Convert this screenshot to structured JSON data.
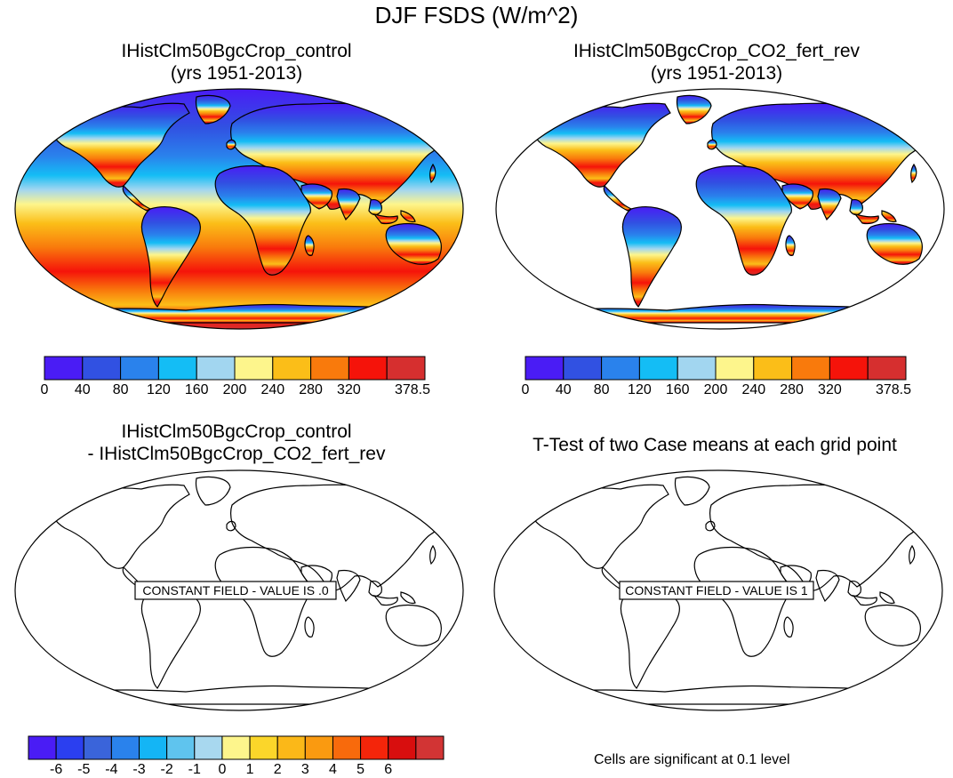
{
  "title": "DJF FSDS (W/m^2)",
  "panels": [
    {
      "title_line1": "IHistClm50BgcCrop_control",
      "title_line2": "(yrs 1951-2013)",
      "field": "climatology"
    },
    {
      "title_line1": "IHistClm50BgcCrop_CO2_fert_rev",
      "title_line2": "(yrs 1951-2013)",
      "field": "climatology"
    },
    {
      "title_line1": "IHistClm50BgcCrop_control",
      "title_line2": "- IHistClm50BgcCrop_CO2_fert_rev",
      "field": "constant",
      "constant_label": "CONSTANT FIELD - VALUE IS .0"
    },
    {
      "title_line1": "T-Test of two Case means at each grid point",
      "title_line2": "",
      "field": "constant",
      "constant_label": "CONSTANT FIELD - VALUE IS 1"
    }
  ],
  "colorbar_abs": {
    "colors": [
      "#4a1cf5",
      "#3151e2",
      "#2a82ec",
      "#14bdf5",
      "#a2d6f0",
      "#fdf58c",
      "#fbbe18",
      "#f97a0c",
      "#f5130a",
      "#d62f2f"
    ],
    "labels": [
      "0",
      "40",
      "80",
      "120",
      "160",
      "200",
      "240",
      "280",
      "320",
      "378.5"
    ]
  },
  "colorbar_diff": {
    "colors": [
      "#4a1cf5",
      "#2b3ff0",
      "#3a64da",
      "#2a82ec",
      "#14b5f5",
      "#5fc4ee",
      "#a8d8ef",
      "#fdf58c",
      "#fbd62a",
      "#fbb818",
      "#fa9a10",
      "#f86a0c",
      "#f4250a",
      "#d80e0e",
      "#d23434"
    ],
    "labels": [
      "-6",
      "-5",
      "-4",
      "-3",
      "-2",
      "-1",
      "0",
      "1",
      "2",
      "3",
      "4",
      "5",
      "6"
    ]
  },
  "footnote": "Cells are significant at 0.1 level"
}
